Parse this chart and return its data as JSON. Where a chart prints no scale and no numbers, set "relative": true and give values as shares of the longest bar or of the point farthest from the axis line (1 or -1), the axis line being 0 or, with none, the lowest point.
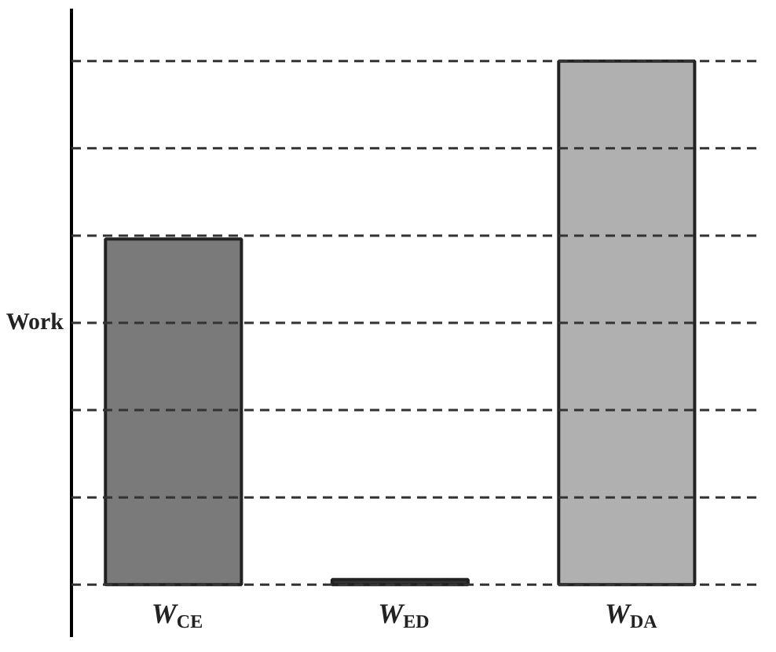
{
  "chart_data": {
    "type": "bar",
    "relative": true,
    "ylabel": "Work",
    "categories": [
      "W$_{CE}$",
      "W$_{ED}$",
      "W$_{DA}$"
    ],
    "values": [
      0.66,
      0.01,
      1.0
    ],
    "colors": [
      "#7a7a7a",
      "#333333",
      "#b0b0b0"
    ],
    "grid": "y"
  }
}
